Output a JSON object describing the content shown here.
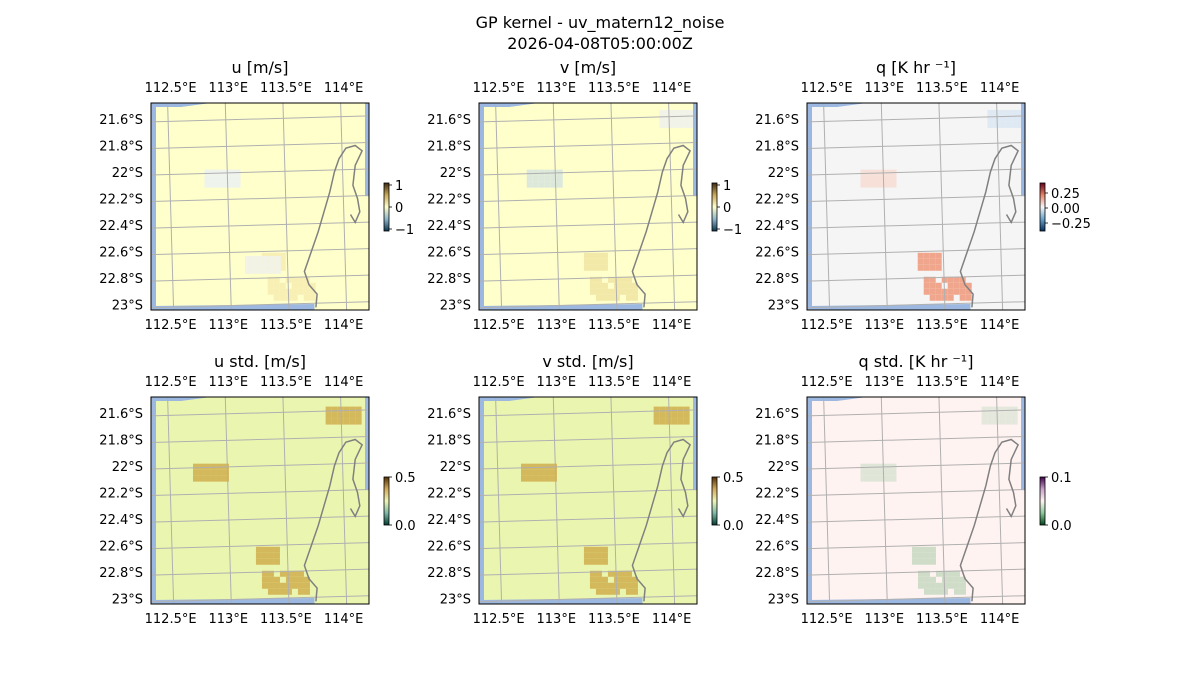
{
  "figure": {
    "title_line1": "GP kernel - uv_matern12_noise",
    "title_line2": "2026-04-08T05:00:00Z"
  },
  "chart_data": [
    {
      "type": "heatmap",
      "title": "u [m/s]",
      "colorbar_ticks": [
        "1",
        "0",
        "−1"
      ],
      "colorbar_range": [
        -1,
        1
      ],
      "x_tick_labels_top": [
        "112.5°E",
        "113°E",
        "113.5°E",
        "114°E"
      ],
      "x_tick_labels_bottom": [
        "112.5°E",
        "113°E",
        "113.5°E",
        "114°E"
      ],
      "y_tick_labels": [
        "21.6°S",
        "21.8°S",
        "22°S",
        "22.2°S",
        "22.4°S",
        "22.6°S",
        "22.8°S",
        "23°S"
      ],
      "base_color": "#ffffcc",
      "features": [
        {
          "lat": -22.05,
          "lon": 112.95,
          "value": -0.05,
          "color": "#eef3ee"
        },
        {
          "lat": -22.88,
          "lon": 113.55,
          "value": 0.1,
          "color": "#f7efb4"
        },
        {
          "lat": -22.7,
          "lon": 113.3,
          "value": 0.0,
          "color": "#f2f2e6"
        }
      ]
    },
    {
      "type": "heatmap",
      "title": "v [m/s]",
      "colorbar_ticks": [
        "1",
        "0",
        "−1"
      ],
      "colorbar_range": [
        -1,
        1
      ],
      "x_tick_labels_top": [
        "112.5°E",
        "113°E",
        "113.5°E",
        "114°E"
      ],
      "x_tick_labels_bottom": [
        "112.5°E",
        "113°E",
        "113.5°E",
        "114°E"
      ],
      "y_tick_labels": [
        "21.6°S",
        "21.8°S",
        "22°S",
        "22.2°S",
        "22.4°S",
        "22.6°S",
        "22.8°S",
        "23°S"
      ],
      "base_color": "#ffffcc",
      "features": [
        {
          "lat": -22.05,
          "lon": 112.9,
          "value": -0.1,
          "color": "#dce8dc"
        },
        {
          "lat": -22.88,
          "lon": 113.5,
          "value": 0.15,
          "color": "#f2e8a8"
        },
        {
          "lat": -21.6,
          "lon": 114.05,
          "value": 0.0,
          "color": "#f1f3e8"
        }
      ]
    },
    {
      "type": "heatmap",
      "title": "q [K hr ⁻¹]",
      "colorbar_ticks": [
        "0.25",
        "0.00",
        "−0.25"
      ],
      "colorbar_range": [
        -0.4,
        0.4
      ],
      "x_tick_labels_top": [
        "112.5°E",
        "113°E",
        "113.5°E",
        "114°E"
      ],
      "x_tick_labels_bottom": [
        "112.5°E",
        "113°E",
        "113.5°E",
        "114°E"
      ],
      "y_tick_labels": [
        "21.6°S",
        "21.8°S",
        "22°S",
        "22.2°S",
        "22.4°S",
        "22.6°S",
        "22.8°S",
        "23°S"
      ],
      "base_color": "#f5f5f5",
      "features": [
        {
          "lat": -22.05,
          "lon": 112.95,
          "value": 0.05,
          "color": "#f6e0d8"
        },
        {
          "lat": -22.88,
          "lon": 113.55,
          "value": 0.2,
          "color": "#f0a68c"
        },
        {
          "lat": -21.6,
          "lon": 114.05,
          "value": -0.05,
          "color": "#dfe9f3"
        }
      ]
    },
    {
      "type": "heatmap",
      "title": "u std. [m/s]",
      "colorbar_ticks": [
        "0.5",
        "0.0"
      ],
      "colorbar_range": [
        0,
        0.5
      ],
      "x_tick_labels_top": [
        "112.5°E",
        "113°E",
        "113.5°E",
        "114°E"
      ],
      "x_tick_labels_bottom": [
        "112.5°E",
        "113°E",
        "113.5°E",
        "114°E"
      ],
      "y_tick_labels": [
        "21.6°S",
        "21.8°S",
        "22°S",
        "22.2°S",
        "22.4°S",
        "22.6°S",
        "22.8°S",
        "23°S"
      ],
      "base_color": "#eaf6b0",
      "features": [
        {
          "lat": -22.05,
          "lon": 112.85,
          "value": 0.3,
          "color": "#d4b85c"
        },
        {
          "lat": -22.88,
          "lon": 113.5,
          "value": 0.3,
          "color": "#d4b85c"
        },
        {
          "lat": -21.62,
          "lon": 114.0,
          "value": 0.3,
          "color": "#d4b85c"
        }
      ]
    },
    {
      "type": "heatmap",
      "title": "v std. [m/s]",
      "colorbar_ticks": [
        "0.5",
        "0.0"
      ],
      "colorbar_range": [
        0,
        0.5
      ],
      "x_tick_labels_top": [
        "112.5°E",
        "113°E",
        "113.5°E",
        "114°E"
      ],
      "x_tick_labels_bottom": [
        "112.5°E",
        "113°E",
        "113.5°E",
        "114°E"
      ],
      "y_tick_labels": [
        "21.6°S",
        "21.8°S",
        "22°S",
        "22.2°S",
        "22.4°S",
        "22.6°S",
        "22.8°S",
        "23°S"
      ],
      "base_color": "#eaf6b0",
      "features": [
        {
          "lat": -22.05,
          "lon": 112.85,
          "value": 0.3,
          "color": "#d4b85c"
        },
        {
          "lat": -22.88,
          "lon": 113.5,
          "value": 0.3,
          "color": "#d4b85c"
        },
        {
          "lat": -21.62,
          "lon": 114.0,
          "value": 0.3,
          "color": "#d4b85c"
        }
      ]
    },
    {
      "type": "heatmap",
      "title": "q std. [K hr ⁻¹]",
      "colorbar_ticks": [
        "0.1",
        "0.0"
      ],
      "colorbar_range": [
        0,
        0.1
      ],
      "x_tick_labels_top": [
        "112.5°E",
        "113°E",
        "113.5°E",
        "114°E"
      ],
      "x_tick_labels_bottom": [
        "112.5°E",
        "113°E",
        "113.5°E",
        "114°E"
      ],
      "y_tick_labels": [
        "21.6°S",
        "21.8°S",
        "22°S",
        "22.2°S",
        "22.4°S",
        "22.6°S",
        "22.8°S",
        "23°S"
      ],
      "base_color": "#fff3f1",
      "features": [
        {
          "lat": -22.05,
          "lon": 112.95,
          "value": 0.02,
          "color": "#dfe6d8"
        },
        {
          "lat": -22.88,
          "lon": 113.5,
          "value": 0.03,
          "color": "#cfdcc8"
        },
        {
          "lat": -21.62,
          "lon": 114.0,
          "value": 0.02,
          "color": "#e4e8dc"
        }
      ]
    }
  ],
  "colors": {
    "ocean_edge": "#9db8e0",
    "grid": "#b0b0b0",
    "coast": "#808080"
  }
}
